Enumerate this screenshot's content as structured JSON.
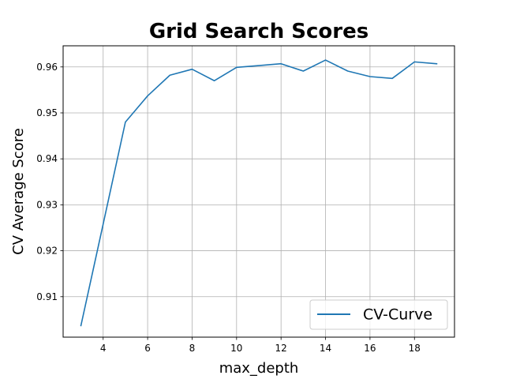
{
  "chart_data": {
    "type": "line",
    "title": "Grid Search Scores",
    "xlabel": "max_depth",
    "ylabel": "CV Average Score",
    "xlim": [
      2.2,
      19.8
    ],
    "ylim": [
      0.9012,
      0.9646
    ],
    "xticks": [
      4,
      6,
      8,
      10,
      12,
      14,
      16,
      18
    ],
    "yticks": [
      0.91,
      0.92,
      0.93,
      0.94,
      0.95,
      0.96
    ],
    "grid": true,
    "legend_position": "lower-right",
    "series": [
      {
        "name": "CV-Curve",
        "color": "#1f77b4",
        "x": [
          3,
          4,
          5,
          6,
          7,
          8,
          9,
          10,
          11,
          12,
          13,
          14,
          15,
          16,
          17,
          18,
          19
        ],
        "y": [
          0.9037,
          0.9258,
          0.948,
          0.9537,
          0.9582,
          0.9595,
          0.957,
          0.9599,
          0.9603,
          0.9607,
          0.9591,
          0.9615,
          0.9591,
          0.9579,
          0.9575,
          0.9611,
          0.9607
        ]
      }
    ]
  }
}
